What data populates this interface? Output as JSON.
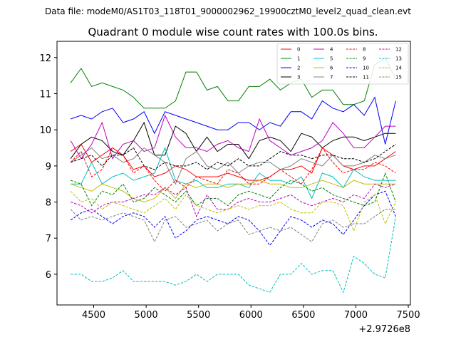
{
  "header": {
    "file_note": "Data file: modeM0/AS1T03_118T01_9000002962_19900cztM0_level2_quad_clean.evt"
  },
  "chart_data": {
    "type": "line",
    "title": "Quadrant 0 module wise count rates with 100.0s bins.",
    "xlabel": "",
    "ylabel": "",
    "x_offset_label": "+2.9726e8",
    "xlim": [
      4150,
      7520
    ],
    "ylim": [
      5.15,
      12.45
    ],
    "x_ticks": [
      4500,
      5000,
      5500,
      6000,
      6500,
      7000,
      7500
    ],
    "x_tick_labels": [
      "4500",
      "5000",
      "5500",
      "6000",
      "6500",
      "7000",
      "7500"
    ],
    "y_ticks": [
      6,
      7,
      8,
      9,
      10,
      11,
      12
    ],
    "y_tick_labels": [
      "6",
      "7",
      "8",
      "9",
      "10",
      "11",
      "12"
    ],
    "x": [
      4280,
      4380,
      4480,
      4580,
      4680,
      4780,
      4880,
      4980,
      5080,
      5180,
      5280,
      5380,
      5480,
      5580,
      5680,
      5780,
      5880,
      5980,
      6080,
      6180,
      6280,
      6380,
      6480,
      6580,
      6680,
      6780,
      6880,
      6980,
      7080,
      7180,
      7280,
      7380
    ],
    "series": [
      {
        "name": "0",
        "color": "#ff0000",
        "dash": "solid",
        "values": [
          9.4,
          9.6,
          9.1,
          9.3,
          9.5,
          9.3,
          8.9,
          9.0,
          8.7,
          8.8,
          9.0,
          8.9,
          8.7,
          8.7,
          8.7,
          8.8,
          8.7,
          8.6,
          8.6,
          8.7,
          8.9,
          8.9,
          9.0,
          8.8,
          9.5,
          9.3,
          9.0,
          8.9,
          9.0,
          9.0,
          9.2,
          9.4
        ]
      },
      {
        "name": "1",
        "color": "#008000",
        "dash": "solid",
        "values": [
          11.3,
          11.7,
          11.2,
          11.3,
          11.2,
          11.1,
          10.9,
          10.6,
          10.6,
          10.6,
          10.8,
          11.6,
          11.6,
          11.1,
          11.2,
          10.8,
          10.8,
          11.2,
          11.2,
          11.4,
          11.1,
          11.3,
          11.4,
          10.9,
          11.1,
          11.1,
          10.7,
          10.7,
          10.8,
          11.8,
          12.0,
          11.4
        ]
      },
      {
        "name": "2",
        "color": "#0000ff",
        "dash": "solid",
        "values": [
          10.3,
          10.4,
          10.3,
          10.5,
          10.6,
          10.2,
          10.3,
          10.5,
          9.9,
          10.5,
          10.4,
          10.3,
          10.2,
          10.1,
          10.0,
          10.0,
          10.2,
          10.2,
          10.0,
          10.2,
          10.1,
          10.5,
          10.5,
          10.3,
          10.8,
          10.6,
          10.5,
          10.7,
          10.4,
          10.9,
          9.6,
          10.8
        ]
      },
      {
        "name": "3",
        "color": "#000000",
        "dash": "solid",
        "values": [
          9.2,
          9.6,
          9.8,
          9.7,
          9.4,
          9.3,
          9.7,
          10.2,
          9.3,
          9.3,
          10.1,
          9.9,
          9.4,
          9.8,
          9.4,
          9.6,
          9.6,
          9.2,
          9.7,
          9.8,
          9.7,
          9.4,
          9.9,
          9.8,
          9.5,
          9.7,
          9.8,
          9.8,
          9.7,
          9.8,
          9.9,
          9.9
        ]
      },
      {
        "name": "4",
        "color": "#bf00bf",
        "dash": "solid",
        "values": [
          9.7,
          9.2,
          9.6,
          10.2,
          9.2,
          9.6,
          9.7,
          9.4,
          9.5,
          10.4,
          9.8,
          9.5,
          9.5,
          9.4,
          9.6,
          9.7,
          9.5,
          9.4,
          10.3,
          9.7,
          9.5,
          9.3,
          9.4,
          9.5,
          9.7,
          10.2,
          9.9,
          9.5,
          9.5,
          9.8,
          10.1,
          10.1
        ]
      },
      {
        "name": "5",
        "color": "#00bfbf",
        "dash": "solid",
        "values": [
          8.5,
          8.5,
          9.1,
          8.5,
          8.7,
          8.8,
          8.6,
          8.7,
          8.8,
          9.5,
          8.6,
          8.5,
          8.6,
          8.4,
          8.4,
          8.5,
          8.5,
          8.4,
          8.8,
          8.6,
          8.6,
          8.5,
          8.7,
          8.1,
          8.8,
          8.7,
          8.4,
          8.9,
          8.7,
          8.6,
          8.6,
          8.6
        ]
      },
      {
        "name": "6",
        "color": "#bfbf00",
        "dash": "solid",
        "values": [
          8.5,
          8.4,
          8.3,
          8.5,
          8.4,
          8.3,
          8.1,
          8.0,
          8.1,
          8.4,
          8.1,
          8.5,
          8.4,
          8.5,
          8.5,
          8.4,
          8.5,
          8.5,
          8.6,
          8.5,
          8.5,
          8.4,
          8.4,
          8.5,
          8.6,
          8.5,
          8.4,
          8.6,
          8.5,
          8.5,
          8.5,
          8.5
        ]
      },
      {
        "name": "7",
        "color": "#808080",
        "dash": "solid",
        "values": [
          9.1,
          9.3,
          9.5,
          9.2,
          9.3,
          9.1,
          9.2,
          9.5,
          9.3,
          9.1,
          8.5,
          9.2,
          9.4,
          9.0,
          8.9,
          9.1,
          8.8,
          9.0,
          9.1,
          9.1,
          8.9,
          9.0,
          9.2,
          9.1,
          9.0,
          9.3,
          9.0,
          9.0,
          9.1,
          9.3,
          9.2,
          9.3
        ]
      },
      {
        "name": "8",
        "color": "#ff0000",
        "dash": "dashed",
        "values": [
          9.1,
          9.4,
          8.7,
          8.9,
          9.5,
          9.3,
          8.8,
          9.0,
          8.6,
          8.3,
          8.6,
          8.4,
          8.7,
          8.6,
          8.5,
          8.9,
          8.8,
          8.5,
          8.5,
          8.7,
          8.9,
          8.7,
          8.5,
          8.9,
          9.5,
          9.1,
          8.8,
          8.9,
          8.9,
          9.1,
          9.0,
          8.8
        ]
      },
      {
        "name": "9",
        "color": "#008000",
        "dash": "dashed",
        "values": [
          8.6,
          8.5,
          7.9,
          8.3,
          8.2,
          8.5,
          8.0,
          8.1,
          8.4,
          8.2,
          8.0,
          8.3,
          7.9,
          8.1,
          8.1,
          7.9,
          8.2,
          8.3,
          8.2,
          8.1,
          8.4,
          8.6,
          8.5,
          8.3,
          8.4,
          8.2,
          8.1,
          8.0,
          7.9,
          8.0,
          8.8,
          8.0
        ]
      },
      {
        "name": "10",
        "color": "#0000ff",
        "dash": "dashed",
        "values": [
          7.5,
          7.7,
          7.8,
          7.6,
          7.4,
          7.6,
          7.7,
          7.6,
          7.3,
          7.6,
          7.0,
          7.2,
          7.5,
          7.6,
          7.5,
          7.4,
          7.6,
          7.5,
          7.2,
          6.8,
          7.2,
          7.6,
          7.5,
          7.3,
          7.5,
          7.4,
          7.1,
          7.5,
          7.9,
          8.2,
          8.3,
          7.6
        ]
      },
      {
        "name": "11",
        "color": "#000000",
        "dash": "dashed",
        "values": [
          9.1,
          9.2,
          9.3,
          9.0,
          9.3,
          9.3,
          9.5,
          9.0,
          8.9,
          9.1,
          9.0,
          9.0,
          9.1,
          8.9,
          9.1,
          9.0,
          9.2,
          9.0,
          9.0,
          9.2,
          9.4,
          9.3,
          9.3,
          9.2,
          9.3,
          9.3,
          9.2,
          9.2,
          9.1,
          9.2,
          9.4,
          9.6
        ]
      },
      {
        "name": "12",
        "color": "#bf00bf",
        "dash": "dashed",
        "values": [
          8.0,
          7.9,
          7.7,
          7.9,
          8.0,
          8.0,
          8.1,
          8.2,
          8.2,
          8.4,
          8.2,
          8.4,
          7.6,
          8.2,
          7.8,
          7.8,
          8.0,
          8.1,
          8.0,
          8.0,
          8.1,
          8.2,
          8.0,
          7.9,
          8.0,
          8.1,
          8.0,
          8.2,
          8.1,
          8.5,
          8.4,
          8.5
        ]
      },
      {
        "name": "13",
        "color": "#00bfbf",
        "dash": "dashed",
        "values": [
          6.0,
          6.0,
          5.8,
          5.8,
          5.9,
          6.1,
          5.8,
          5.8,
          5.8,
          5.8,
          5.7,
          5.8,
          6.0,
          5.8,
          6.0,
          6.0,
          6.0,
          5.7,
          5.6,
          5.5,
          6.0,
          6.0,
          6.3,
          6.0,
          6.1,
          6.1,
          5.5,
          6.5,
          6.3,
          6.0,
          5.9,
          7.6
        ]
      },
      {
        "name": "14",
        "color": "#bfbf00",
        "dash": "dashed",
        "values": [
          8.3,
          8.0,
          8.1,
          7.8,
          8.0,
          7.9,
          7.8,
          7.7,
          7.9,
          8.1,
          7.8,
          8.2,
          7.9,
          7.8,
          7.7,
          7.8,
          7.9,
          7.8,
          7.9,
          7.9,
          8.0,
          7.8,
          7.7,
          7.7,
          8.0,
          8.0,
          7.9,
          7.2,
          8.0,
          8.2,
          7.4,
          8.0
        ]
      },
      {
        "name": "15",
        "color": "#808080",
        "dash": "dashed",
        "values": [
          7.8,
          7.5,
          7.6,
          7.5,
          7.6,
          7.7,
          7.6,
          7.5,
          6.9,
          7.5,
          7.6,
          7.3,
          7.4,
          7.5,
          7.2,
          7.4,
          7.5,
          7.1,
          7.2,
          7.3,
          7.2,
          7.3,
          7.1,
          6.9,
          7.4,
          7.5,
          7.3,
          7.4,
          7.4,
          7.6,
          7.8,
          7.8
        ]
      }
    ]
  }
}
